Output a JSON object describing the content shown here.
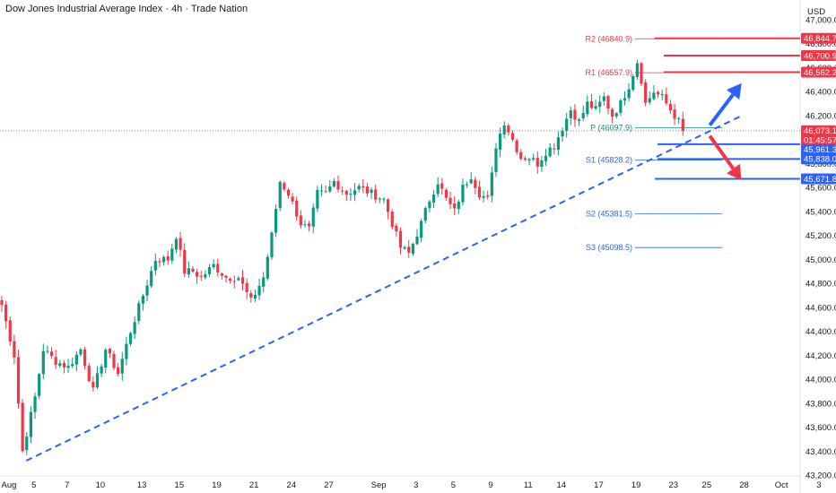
{
  "header": {
    "title": "Dow Jones Industrial Average Index · 4h · Trade Nation"
  },
  "currency_label": "USD",
  "colors": {
    "bull": "#089981",
    "bear": "#f23645",
    "blue": "#2962ff",
    "resistance": "#f23645",
    "support": "#2962ff",
    "trend": "#2962ff"
  },
  "chart_data": {
    "type": "candlestick",
    "ylim": [
      43200,
      47000
    ],
    "y_ticks": [
      47000,
      46800,
      46600,
      46400,
      46200,
      46000,
      45800,
      45600,
      45400,
      45200,
      45000,
      44800,
      44600,
      44400,
      44200,
      44000,
      43800,
      43600,
      43400,
      43200
    ],
    "x_ticks": [
      {
        "label": "Aug",
        "i": 0
      },
      {
        "label": "5",
        "i": 6
      },
      {
        "label": "7",
        "i": 14
      },
      {
        "label": "10",
        "i": 22
      },
      {
        "label": "13",
        "i": 32
      },
      {
        "label": "15",
        "i": 41
      },
      {
        "label": "19",
        "i": 50
      },
      {
        "label": "21",
        "i": 59
      },
      {
        "label": "24",
        "i": 68
      },
      {
        "label": "27",
        "i": 77
      },
      {
        "label": "Sep",
        "i": 89
      },
      {
        "label": "3",
        "i": 98
      },
      {
        "label": "5",
        "i": 107
      },
      {
        "label": "9",
        "i": 116
      },
      {
        "label": "11",
        "i": 125
      },
      {
        "label": "14",
        "i": 133
      },
      {
        "label": "17",
        "i": 142
      },
      {
        "label": "19",
        "i": 151
      },
      {
        "label": "23",
        "i": 160
      },
      {
        "label": "25",
        "i": 168
      },
      {
        "label": "28",
        "i": 177
      },
      {
        "label": "Oct",
        "i": 186
      },
      {
        "label": "3",
        "i": 195
      }
    ],
    "price_anchors": [
      [
        0,
        44620
      ],
      [
        3,
        44200
      ],
      [
        5,
        43400
      ],
      [
        8,
        43850
      ],
      [
        10,
        44250
      ],
      [
        13,
        44150
      ],
      [
        16,
        44100
      ],
      [
        19,
        44250
      ],
      [
        22,
        43900
      ],
      [
        25,
        44250
      ],
      [
        28,
        44050
      ],
      [
        31,
        44400
      ],
      [
        34,
        44700
      ],
      [
        37,
        45000
      ],
      [
        40,
        45000
      ],
      [
        42,
        45200
      ],
      [
        44,
        44900
      ],
      [
        46,
        44900
      ],
      [
        48,
        44850
      ],
      [
        51,
        44950
      ],
      [
        54,
        44850
      ],
      [
        57,
        44850
      ],
      [
        60,
        44650
      ],
      [
        63,
        44850
      ],
      [
        65,
        45200
      ],
      [
        67,
        45650
      ],
      [
        69,
        45550
      ],
      [
        72,
        45300
      ],
      [
        74,
        45250
      ],
      [
        76,
        45550
      ],
      [
        78,
        45550
      ],
      [
        80,
        45650
      ],
      [
        83,
        45550
      ],
      [
        86,
        45600
      ],
      [
        89,
        45550
      ],
      [
        92,
        45500
      ],
      [
        94,
        45300
      ],
      [
        96,
        45100
      ],
      [
        98,
        45050
      ],
      [
        101,
        45300
      ],
      [
        103,
        45500
      ],
      [
        105,
        45650
      ],
      [
        107,
        45500
      ],
      [
        109,
        45400
      ],
      [
        111,
        45600
      ],
      [
        113,
        45700
      ],
      [
        115,
        45550
      ],
      [
        117,
        45500
      ],
      [
        118,
        45700
      ],
      [
        119,
        45950
      ],
      [
        121,
        46150
      ],
      [
        123,
        46000
      ],
      [
        125,
        45850
      ],
      [
        127,
        45850
      ],
      [
        129,
        45800
      ],
      [
        131,
        45900
      ],
      [
        133,
        45950
      ],
      [
        135,
        46100
      ],
      [
        137,
        46250
      ],
      [
        139,
        46150
      ],
      [
        141,
        46300
      ],
      [
        143,
        46250
      ],
      [
        145,
        46350
      ],
      [
        147,
        46200
      ],
      [
        149,
        46300
      ],
      [
        151,
        46450
      ],
      [
        153,
        46650
      ],
      [
        154,
        46500
      ],
      [
        155,
        46300
      ],
      [
        157,
        46400
      ],
      [
        159,
        46350
      ],
      [
        161,
        46250
      ],
      [
        163,
        46150
      ],
      [
        164,
        46073
      ]
    ],
    "last_price": 46073.1,
    "last_price_label": "46,073.1",
    "countdown": "01:45:57",
    "pivots": [
      {
        "name": "R2",
        "label": "R2 (46840.9)",
        "value": 46840.9,
        "color": "#f23645"
      },
      {
        "name": "R1",
        "label": "R1 (46557.9)",
        "value": 46557.9,
        "color": "#f23645"
      },
      {
        "name": "P",
        "label": "P (46097.9)",
        "value": 46097.9,
        "color": "#089981"
      },
      {
        "name": "S1",
        "label": "S1 (45828.2)",
        "value": 45828.2,
        "color": "#2962ff"
      },
      {
        "name": "S2",
        "label": "S2 (45381.5)",
        "value": 45381.5,
        "color": "#2962ff"
      },
      {
        "name": "S3",
        "label": "S3 (45098.5)",
        "value": 45098.5,
        "color": "#2962ff"
      }
    ],
    "resistance_levels": [
      {
        "value": 46844.7,
        "label": "46,844.7"
      },
      {
        "value": 46700.9,
        "label": "46,700.9"
      },
      {
        "value": 46562.2,
        "label": "46,562.2"
      }
    ],
    "support_levels": [
      {
        "value": 45961.3,
        "label": "45,961.3"
      },
      {
        "value": 45838.0,
        "label": "45,838.0"
      },
      {
        "value": 45671.8,
        "label": "45,671.8"
      }
    ],
    "trendline": {
      "from": {
        "i": 2,
        "price": 43320
      },
      "to": {
        "i": 170,
        "price": 46200
      }
    },
    "arrows": [
      {
        "direction": "up",
        "color": "#2962ff",
        "from": {
          "i": 164,
          "price": 46120
        },
        "to": {
          "i": 171,
          "price": 46470
        }
      },
      {
        "direction": "down",
        "color": "#f23645",
        "from": {
          "i": 164,
          "price": 46030
        },
        "to": {
          "i": 171,
          "price": 45660
        }
      }
    ]
  }
}
